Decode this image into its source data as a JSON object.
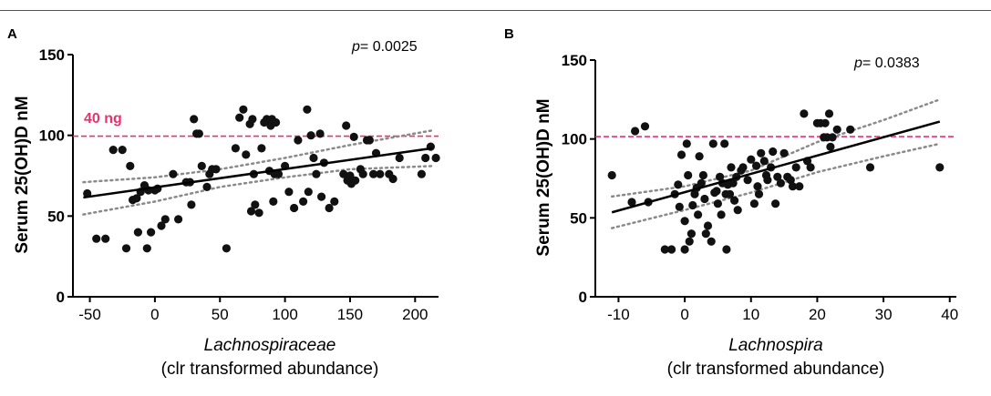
{
  "colors": {
    "points": "#111111",
    "fit": "#000000",
    "ci": "#8a8a8a",
    "threshold": "#e8326d",
    "axis": "#000000"
  },
  "chart_data": [
    {
      "type": "scatter",
      "panel_label": "A",
      "pvalue_label": "p",
      "pvalue_text": "= 0.0025",
      "xlabel_italic": "Lachnospiraceae",
      "xlabel_sub": "(clr transformed abundance)",
      "ylabel": "Serum 25(OH)D nM",
      "xlim": [
        -63,
        218
      ],
      "ylim": [
        0,
        150
      ],
      "xticks": [
        -50,
        0,
        50,
        100,
        150,
        200
      ],
      "yticks": [
        0,
        50,
        100,
        150
      ],
      "threshold": {
        "y": 99.5,
        "label": "40 ng"
      },
      "fit": {
        "x": [
          -55,
          213
        ],
        "y": [
          61.5,
          92
        ]
      },
      "ci_upper": [
        [
          -55,
          71
        ],
        [
          0,
          74
        ],
        [
          50,
          79
        ],
        [
          100,
          86
        ],
        [
          150,
          94
        ],
        [
          213,
          103
        ]
      ],
      "ci_lower": [
        [
          -55,
          51
        ],
        [
          0,
          59
        ],
        [
          50,
          68
        ],
        [
          100,
          74
        ],
        [
          150,
          79
        ],
        [
          213,
          81
        ]
      ],
      "points": [
        [
          -52,
          64
        ],
        [
          -45,
          36
        ],
        [
          -38,
          36
        ],
        [
          -32,
          91
        ],
        [
          -25,
          91
        ],
        [
          -22,
          30
        ],
        [
          -19,
          81
        ],
        [
          -17,
          60
        ],
        [
          -14,
          61
        ],
        [
          -13,
          40
        ],
        [
          -11,
          65
        ],
        [
          -8,
          69
        ],
        [
          -6,
          30
        ],
        [
          -5,
          66
        ],
        [
          -3,
          40
        ],
        [
          0,
          66
        ],
        [
          2,
          67
        ],
        [
          5,
          44
        ],
        [
          8,
          48
        ],
        [
          14,
          76
        ],
        [
          18,
          48
        ],
        [
          24,
          71
        ],
        [
          27,
          71
        ],
        [
          28,
          57
        ],
        [
          30,
          110
        ],
        [
          32,
          101
        ],
        [
          34,
          101
        ],
        [
          36,
          81
        ],
        [
          40,
          68
        ],
        [
          42,
          76
        ],
        [
          44,
          79
        ],
        [
          47,
          79
        ],
        [
          55,
          30
        ],
        [
          62,
          92
        ],
        [
          65,
          111
        ],
        [
          68,
          116
        ],
        [
          70,
          88
        ],
        [
          73,
          107
        ],
        [
          74,
          53
        ],
        [
          75,
          110
        ],
        [
          76,
          76
        ],
        [
          77,
          57
        ],
        [
          80,
          52
        ],
        [
          82,
          92
        ],
        [
          84,
          108
        ],
        [
          86,
          110
        ],
        [
          88,
          78
        ],
        [
          89,
          106
        ],
        [
          90,
          110
        ],
        [
          91,
          59
        ],
        [
          92,
          76
        ],
        [
          93,
          108
        ],
        [
          95,
          76
        ],
        [
          100,
          81
        ],
        [
          103,
          65
        ],
        [
          107,
          55
        ],
        [
          110,
          97
        ],
        [
          114,
          59
        ],
        [
          117,
          116
        ],
        [
          118,
          65
        ],
        [
          120,
          100
        ],
        [
          122,
          86
        ],
        [
          124,
          76
        ],
        [
          127,
          101
        ],
        [
          128,
          62
        ],
        [
          130,
          83
        ],
        [
          134,
          55
        ],
        [
          138,
          59
        ],
        [
          145,
          76
        ],
        [
          147,
          106
        ],
        [
          148,
          72
        ],
        [
          150,
          75
        ],
        [
          151,
          70
        ],
        [
          153,
          99
        ],
        [
          154,
          72
        ],
        [
          158,
          79
        ],
        [
          160,
          76
        ],
        [
          163,
          97
        ],
        [
          165,
          97
        ],
        [
          168,
          76
        ],
        [
          170,
          89
        ],
        [
          173,
          76
        ],
        [
          180,
          76
        ],
        [
          183,
          73
        ],
        [
          188,
          86
        ],
        [
          205,
          76
        ],
        [
          208,
          86
        ],
        [
          212,
          93
        ],
        [
          216,
          86
        ]
      ]
    },
    {
      "type": "scatter",
      "panel_label": "B",
      "pvalue_label": "p",
      "pvalue_text": "= 0.0383",
      "xlabel_italic": "Lachnospira",
      "xlabel_sub": "(clr transformed abundance)",
      "ylabel": "Serum 25(OH)D nM",
      "xlim": [
        -13.5,
        41
      ],
      "ylim": [
        0,
        150
      ],
      "xticks": [
        -10,
        0,
        10,
        20,
        30,
        40
      ],
      "yticks": [
        0,
        50,
        100,
        150
      ],
      "threshold": {
        "y": 101.5
      },
      "fit": {
        "x": [
          -11,
          38.5
        ],
        "y": [
          53.5,
          111
        ]
      },
      "ci_upper": [
        [
          -11,
          63.5
        ],
        [
          0,
          70
        ],
        [
          10,
          80
        ],
        [
          20,
          98
        ],
        [
          30,
          112
        ],
        [
          38.5,
          125
        ]
      ],
      "ci_lower": [
        [
          -11,
          43.5
        ],
        [
          0,
          55
        ],
        [
          10,
          66
        ],
        [
          20,
          79
        ],
        [
          30,
          89
        ],
        [
          38.5,
          97
        ]
      ],
      "points": [
        [
          -11,
          77
        ],
        [
          -8,
          60
        ],
        [
          -7.5,
          105
        ],
        [
          -6,
          108
        ],
        [
          -5.5,
          60
        ],
        [
          -3,
          30
        ],
        [
          -2,
          30
        ],
        [
          -1.5,
          65
        ],
        [
          -1,
          71
        ],
        [
          -0.8,
          57
        ],
        [
          -0.5,
          90
        ],
        [
          0,
          48
        ],
        [
          0,
          30
        ],
        [
          0.3,
          97
        ],
        [
          0.5,
          77
        ],
        [
          0.7,
          35
        ],
        [
          1,
          40
        ],
        [
          1.2,
          58
        ],
        [
          1.5,
          65
        ],
        [
          1.8,
          69
        ],
        [
          2,
          52
        ],
        [
          2.2,
          89
        ],
        [
          2.5,
          72
        ],
        [
          2.8,
          77
        ],
        [
          3,
          62
        ],
        [
          3.2,
          40
        ],
        [
          3.5,
          45
        ],
        [
          4,
          35
        ],
        [
          4.3,
          97
        ],
        [
          4.5,
          66
        ],
        [
          4.8,
          67
        ],
        [
          5,
          59
        ],
        [
          5.3,
          76
        ],
        [
          5.5,
          52
        ],
        [
          5.7,
          72
        ],
        [
          6,
          97
        ],
        [
          6.2,
          65
        ],
        [
          6.3,
          30
        ],
        [
          6.5,
          71
        ],
        [
          6.8,
          65
        ],
        [
          7,
          82
        ],
        [
          7.3,
          72
        ],
        [
          7.5,
          61
        ],
        [
          7.8,
          76
        ],
        [
          8,
          55
        ],
        [
          8.5,
          80
        ],
        [
          8.8,
          82
        ],
        [
          9.5,
          74
        ],
        [
          10,
          87
        ],
        [
          10.5,
          59
        ],
        [
          10.8,
          83
        ],
        [
          11,
          70
        ],
        [
          11.2,
          65
        ],
        [
          11.5,
          91
        ],
        [
          12,
          86
        ],
        [
          12.3,
          77
        ],
        [
          12.5,
          74
        ],
        [
          13,
          82
        ],
        [
          13.3,
          92
        ],
        [
          13.7,
          59
        ],
        [
          14,
          76
        ],
        [
          14.5,
          72
        ],
        [
          15,
          91
        ],
        [
          15.5,
          76
        ],
        [
          16,
          74
        ],
        [
          16.3,
          70
        ],
        [
          16.8,
          82
        ],
        [
          17.3,
          70
        ],
        [
          18,
          116
        ],
        [
          18.5,
          86
        ],
        [
          19,
          82
        ],
        [
          20,
          110
        ],
        [
          20.5,
          110
        ],
        [
          21,
          101
        ],
        [
          21.2,
          110
        ],
        [
          21.5,
          101
        ],
        [
          21.8,
          116
        ],
        [
          22,
          95
        ],
        [
          22.3,
          101
        ],
        [
          23,
          106
        ],
        [
          25,
          106
        ],
        [
          28,
          82
        ],
        [
          38.5,
          82
        ]
      ]
    }
  ]
}
